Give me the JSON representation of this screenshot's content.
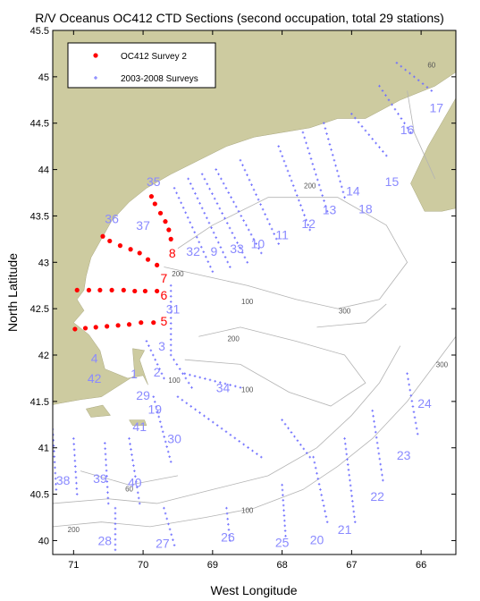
{
  "title": "R/V Oceanus OC412 CTD Sections (second occupation, total 29 stations)",
  "xlabel": "West Longitude",
  "ylabel": "North Latitude",
  "xlim": [
    -71.3,
    -65.5
  ],
  "ylim": [
    39.85,
    45.5
  ],
  "x_ticks": [
    {
      "value": -71,
      "label": "71"
    },
    {
      "value": -70,
      "label": "70"
    },
    {
      "value": -69,
      "label": "69"
    },
    {
      "value": -68,
      "label": "68"
    },
    {
      "value": -67,
      "label": "67"
    },
    {
      "value": -66,
      "label": "66"
    }
  ],
  "y_ticks": [
    {
      "value": 40,
      "label": "40"
    },
    {
      "value": 40.5,
      "label": "40.5"
    },
    {
      "value": 41,
      "label": "41"
    },
    {
      "value": 41.5,
      "label": "41.5"
    },
    {
      "value": 42,
      "label": "42"
    },
    {
      "value": 42.5,
      "label": "42.5"
    },
    {
      "value": 43,
      "label": "43"
    },
    {
      "value": 43.5,
      "label": "43.5"
    },
    {
      "value": 44,
      "label": "44"
    },
    {
      "value": 44.5,
      "label": "44.5"
    },
    {
      "value": 45,
      "label": "45"
    },
    {
      "value": 45.5,
      "label": "45.5"
    }
  ],
  "legend": {
    "items": [
      {
        "label": "OC412 Survey 2",
        "color": "#ff0000",
        "marker": "dot"
      },
      {
        "label": "2003-2008 Surveys",
        "color": "#6f6fff",
        "marker": "plus"
      }
    ]
  },
  "colors": {
    "land": "#cdcba0",
    "survey2": "#ff0000",
    "historic": "#6f6fff",
    "historic_label": "#8a8aff",
    "contour": "#b3b3b3"
  },
  "chart_data": {
    "type": "scatter",
    "series": [
      {
        "name": "OC412 Survey 2",
        "points": [
          [
            -69.88,
            43.71
          ],
          [
            -69.83,
            43.63
          ],
          [
            -69.75,
            43.53
          ],
          [
            -69.68,
            43.44
          ],
          [
            -69.63,
            43.35
          ],
          [
            -69.6,
            43.25
          ],
          [
            -70.58,
            43.28
          ],
          [
            -70.48,
            43.23
          ],
          [
            -70.33,
            43.18
          ],
          [
            -70.18,
            43.14
          ],
          [
            -70.05,
            43.1
          ],
          [
            -69.93,
            43.03
          ],
          [
            -69.8,
            42.97
          ],
          [
            -70.95,
            42.7
          ],
          [
            -70.78,
            42.7
          ],
          [
            -70.62,
            42.7
          ],
          [
            -70.45,
            42.7
          ],
          [
            -70.28,
            42.7
          ],
          [
            -70.12,
            42.69
          ],
          [
            -69.97,
            42.69
          ],
          [
            -69.8,
            42.69
          ],
          [
            -70.98,
            42.28
          ],
          [
            -70.83,
            42.29
          ],
          [
            -70.68,
            42.3
          ],
          [
            -70.52,
            42.31
          ],
          [
            -70.36,
            42.32
          ],
          [
            -70.2,
            42.33
          ],
          [
            -70.03,
            42.35
          ],
          [
            -69.85,
            42.35
          ]
        ]
      },
      {
        "name": "2003-2008 Surveys",
        "lines": [
          [
            [
              -69.55,
              43.8
            ],
            [
              -69.0,
              42.9
            ]
          ],
          [
            [
              -69.35,
              43.9
            ],
            [
              -68.75,
              42.95
            ]
          ],
          [
            [
              -69.15,
              43.95
            ],
            [
              -68.5,
              43.0
            ]
          ],
          [
            [
              -68.95,
              44.0
            ],
            [
              -68.3,
              43.1
            ]
          ],
          [
            [
              -68.6,
              44.1
            ],
            [
              -68.05,
              43.2
            ]
          ],
          [
            [
              -68.05,
              44.25
            ],
            [
              -67.6,
              43.35
            ]
          ],
          [
            [
              -67.7,
              44.4
            ],
            [
              -67.35,
              43.55
            ]
          ],
          [
            [
              -67.4,
              44.5
            ],
            [
              -67.1,
              43.7
            ]
          ],
          [
            [
              -67.0,
              44.6
            ],
            [
              -66.5,
              44.15
            ]
          ],
          [
            [
              -66.6,
              44.9
            ],
            [
              -66.15,
              44.4
            ]
          ],
          [
            [
              -66.35,
              45.15
            ],
            [
              -65.85,
              44.85
            ]
          ],
          [
            [
              -69.6,
              42.75
            ],
            [
              -69.6,
              42.05
            ]
          ],
          [
            [
              -69.6,
              42.0
            ],
            [
              -69.3,
              41.65
            ]
          ],
          [
            [
              -69.85,
              41.55
            ],
            [
              -69.6,
              40.85
            ]
          ],
          [
            [
              -70.2,
              41.1
            ],
            [
              -70.05,
              40.4
            ]
          ],
          [
            [
              -70.55,
              41.05
            ],
            [
              -70.5,
              40.4
            ]
          ],
          [
            [
              -71.0,
              41.1
            ],
            [
              -70.95,
              40.5
            ]
          ],
          [
            [
              -71.3,
              41.2
            ],
            [
              -71.25,
              40.55
            ]
          ],
          [
            [
              -70.4,
              40.35
            ],
            [
              -70.4,
              39.9
            ]
          ],
          [
            [
              -69.7,
              40.35
            ],
            [
              -69.55,
              39.95
            ]
          ],
          [
            [
              -68.8,
              40.35
            ],
            [
              -68.75,
              40.0
            ]
          ],
          [
            [
              -68.0,
              40.6
            ],
            [
              -67.95,
              40.05
            ]
          ],
          [
            [
              -67.55,
              40.9
            ],
            [
              -67.35,
              40.2
            ]
          ],
          [
            [
              -67.1,
              41.1
            ],
            [
              -66.95,
              40.2
            ]
          ],
          [
            [
              -66.7,
              41.4
            ],
            [
              -66.55,
              40.65
            ]
          ],
          [
            [
              -66.2,
              41.8
            ],
            [
              -66.05,
              41.15
            ]
          ],
          [
            [
              -68.0,
              41.3
            ],
            [
              -67.6,
              40.9
            ]
          ],
          [
            [
              -69.4,
              41.8
            ],
            [
              -68.6,
              41.65
            ]
          ],
          [
            [
              -69.5,
              41.55
            ],
            [
              -68.3,
              40.9
            ]
          ],
          [
            [
              -69.95,
              42.15
            ],
            [
              -69.7,
              41.75
            ]
          ]
        ]
      }
    ],
    "station_labels_survey2": [
      {
        "text": "8",
        "lon": -69.58,
        "lat": 43.05
      },
      {
        "text": "7",
        "lon": -69.7,
        "lat": 42.78
      },
      {
        "text": "6",
        "lon": -69.7,
        "lat": 42.6
      },
      {
        "text": "5",
        "lon": -69.7,
        "lat": 42.32
      }
    ],
    "station_labels_historic": [
      {
        "text": "35",
        "lon": -69.85,
        "lat": 43.82
      },
      {
        "text": "36",
        "lon": -70.45,
        "lat": 43.42
      },
      {
        "text": "37",
        "lon": -70.0,
        "lat": 43.35
      },
      {
        "text": "32",
        "lon": -69.28,
        "lat": 43.07
      },
      {
        "text": "9",
        "lon": -68.98,
        "lat": 43.07
      },
      {
        "text": "33",
        "lon": -68.65,
        "lat": 43.1
      },
      {
        "text": "10",
        "lon": -68.35,
        "lat": 43.15
      },
      {
        "text": "11",
        "lon": -68.0,
        "lat": 43.25
      },
      {
        "text": "12",
        "lon": -67.62,
        "lat": 43.37
      },
      {
        "text": "13",
        "lon": -67.32,
        "lat": 43.52
      },
      {
        "text": "14",
        "lon": -66.98,
        "lat": 43.72
      },
      {
        "text": "18",
        "lon": -66.8,
        "lat": 43.53
      },
      {
        "text": "15",
        "lon": -66.42,
        "lat": 43.82
      },
      {
        "text": "16",
        "lon": -66.2,
        "lat": 44.38
      },
      {
        "text": "17",
        "lon": -65.78,
        "lat": 44.62
      },
      {
        "text": "31",
        "lon": -69.57,
        "lat": 42.45
      },
      {
        "text": "3",
        "lon": -69.73,
        "lat": 42.05
      },
      {
        "text": "4",
        "lon": -70.7,
        "lat": 41.92
      },
      {
        "text": "1",
        "lon": -70.13,
        "lat": 41.75
      },
      {
        "text": "2",
        "lon": -69.8,
        "lat": 41.77
      },
      {
        "text": "42",
        "lon": -70.7,
        "lat": 41.7
      },
      {
        "text": "34",
        "lon": -68.85,
        "lat": 41.6
      },
      {
        "text": "29",
        "lon": -70.0,
        "lat": 41.52
      },
      {
        "text": "19",
        "lon": -69.83,
        "lat": 41.37
      },
      {
        "text": "41",
        "lon": -70.05,
        "lat": 41.18
      },
      {
        "text": "30",
        "lon": -69.55,
        "lat": 41.05
      },
      {
        "text": "24",
        "lon": -65.95,
        "lat": 41.43
      },
      {
        "text": "23",
        "lon": -66.25,
        "lat": 40.87
      },
      {
        "text": "38",
        "lon": -71.15,
        "lat": 40.6
      },
      {
        "text": "39",
        "lon": -70.62,
        "lat": 40.62
      },
      {
        "text": "40",
        "lon": -70.12,
        "lat": 40.58
      },
      {
        "text": "22",
        "lon": -66.63,
        "lat": 40.43
      },
      {
        "text": "21",
        "lon": -67.1,
        "lat": 40.07
      },
      {
        "text": "20",
        "lon": -67.5,
        "lat": 39.96
      },
      {
        "text": "25",
        "lon": -68.0,
        "lat": 39.93
      },
      {
        "text": "26",
        "lon": -68.78,
        "lat": 39.99
      },
      {
        "text": "27",
        "lon": -69.72,
        "lat": 39.92
      },
      {
        "text": "28",
        "lon": -70.55,
        "lat": 39.95
      }
    ],
    "contour_labels": [
      {
        "text": "60",
        "lon": -65.85,
        "lat": 45.1
      },
      {
        "text": "200",
        "lon": -67.6,
        "lat": 43.8
      },
      {
        "text": "200",
        "lon": -69.5,
        "lat": 42.85
      },
      {
        "text": "100",
        "lon": -68.5,
        "lat": 42.55
      },
      {
        "text": "300",
        "lon": -67.1,
        "lat": 42.45
      },
      {
        "text": "200",
        "lon": -68.7,
        "lat": 42.15
      },
      {
        "text": "100",
        "lon": -69.55,
        "lat": 41.7
      },
      {
        "text": "300",
        "lon": -65.7,
        "lat": 41.87
      },
      {
        "text": "100",
        "lon": -68.5,
        "lat": 41.6
      },
      {
        "text": "60",
        "lon": -70.2,
        "lat": 40.53
      },
      {
        "text": "100",
        "lon": -68.5,
        "lat": 40.3
      },
      {
        "text": "200",
        "lon": -71.0,
        "lat": 40.09
      }
    ]
  }
}
